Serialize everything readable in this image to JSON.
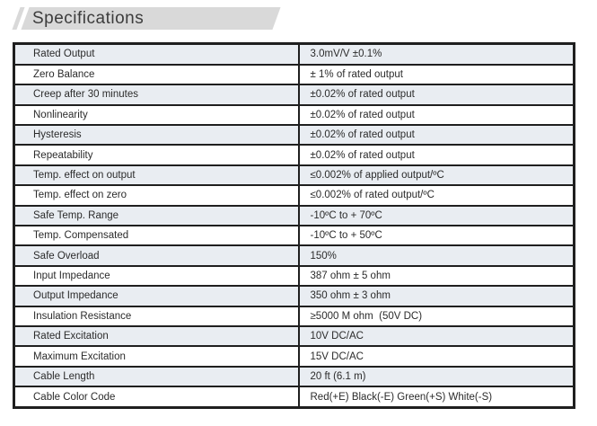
{
  "header": {
    "title": "Specifications"
  },
  "colors": {
    "banner_gray": "#d9d9d9",
    "row_shade": "#e9edf2",
    "border": "#1f1f1f",
    "text": "#2b2b2b"
  },
  "table": {
    "rows": [
      {
        "label": "Rated Output",
        "value": "3.0mV/V ±0.1%"
      },
      {
        "label": "Zero Balance",
        "value": "± 1% of rated output"
      },
      {
        "label": "Creep after 30 minutes",
        "value": "±0.02% of rated output"
      },
      {
        "label": "Nonlinearity",
        "value": "±0.02% of rated output"
      },
      {
        "label": "Hysteresis",
        "value": "±0.02% of rated output"
      },
      {
        "label": "Repeatability",
        "value": "±0.02% of rated output"
      },
      {
        "label": "Temp. effect on output",
        "value": "≤0.002% of applied output/ºC"
      },
      {
        "label": "Temp. effect on zero",
        "value": "≤0.002% of rated output/ºC"
      },
      {
        "label": "Safe Temp. Range",
        "value": "-10ºC to + 70ºC"
      },
      {
        "label": "Temp. Compensated",
        "value": "-10ºC to + 50ºC"
      },
      {
        "label": "Safe Overload",
        "value": "150%"
      },
      {
        "label": "Input Impedance",
        "value": "387 ohm ± 5 ohm"
      },
      {
        "label": "Output Impedance",
        "value": "350 ohm ± 3 ohm"
      },
      {
        "label": "Insulation Resistance",
        "value": "≥5000 M ohm  (50V DC)"
      },
      {
        "label": "Rated Excitation",
        "value": "10V DC/AC"
      },
      {
        "label": "Maximum Excitation",
        "value": "15V DC/AC"
      },
      {
        "label": "Cable Length",
        "value": "20 ft (6.1 m)"
      },
      {
        "label": "Cable Color Code",
        "value": "Red(+E) Black(-E) Green(+S) White(-S)"
      }
    ]
  }
}
